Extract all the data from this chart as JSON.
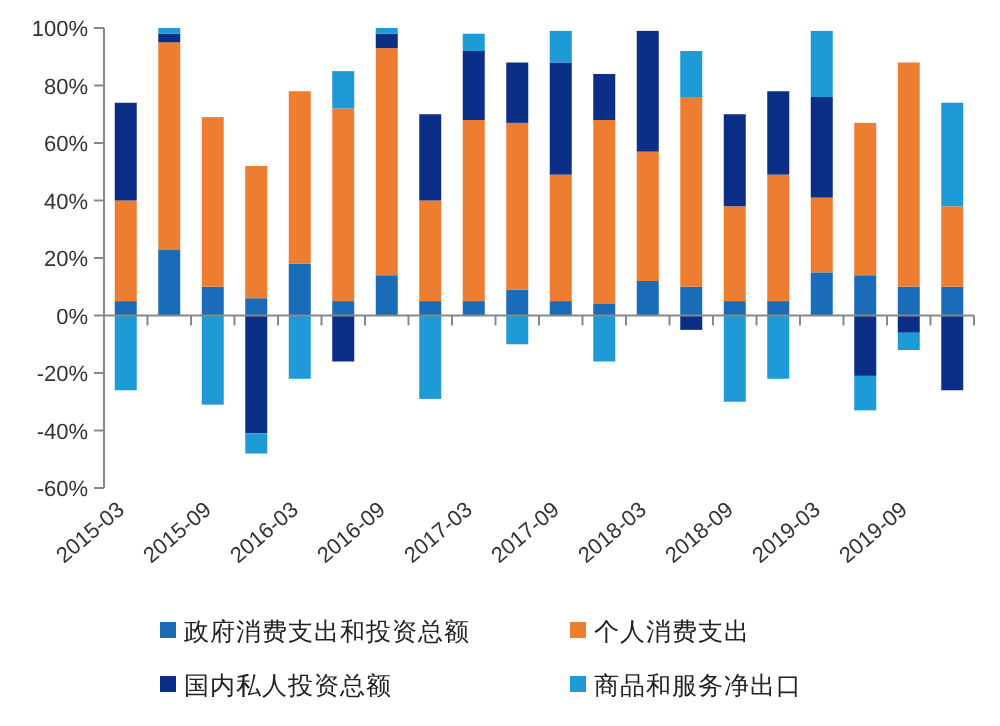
{
  "chart_data": {
    "type": "bar",
    "stacked": true,
    "categories": [
      "2015-03",
      null,
      "2015-09",
      null,
      "2016-03",
      null,
      "2016-09",
      null,
      "2017-03",
      null,
      "2017-09",
      null,
      "2018-03",
      null,
      "2018-09",
      null,
      "2019-03",
      null,
      "2019-09",
      null
    ],
    "series": [
      {
        "name": "政府消费支出和投资总额",
        "color": "#1a6bb8",
        "values": [
          5,
          23,
          10,
          6,
          18,
          5,
          14,
          5,
          5,
          9,
          5,
          4,
          12,
          10,
          5,
          5,
          15,
          14,
          10,
          10
        ]
      },
      {
        "name": "个人消费支出",
        "color": "#ed7d31",
        "values": [
          35,
          72,
          59,
          46,
          60,
          67,
          79,
          35,
          63,
          58,
          44,
          64,
          45,
          66,
          33,
          44,
          26,
          53,
          78,
          28
        ]
      },
      {
        "name": "国内私人投资总额",
        "color": "#0b2f86",
        "values": [
          34,
          3,
          null,
          -41,
          null,
          -16,
          5,
          30,
          24,
          21,
          39,
          16,
          42,
          -5,
          32,
          29,
          35,
          -21,
          -6,
          -26
        ]
      },
      {
        "name": "商品和服务净出口",
        "color": "#1e9ad6",
        "values": [
          -26,
          2,
          -31,
          -7,
          -22,
          13,
          2,
          -29,
          6,
          -10,
          11,
          -16,
          null,
          16,
          -30,
          -22,
          23,
          -12,
          -6,
          36
        ]
      }
    ],
    "ylim": [
      -60,
      100
    ],
    "yticks": [
      {
        "value": -60,
        "label": "-60%"
      },
      {
        "value": -40,
        "label": "-40%"
      },
      {
        "value": -20,
        "label": "-20%"
      },
      {
        "value": 0,
        "label": "0%"
      },
      {
        "value": 20,
        "label": "20%"
      },
      {
        "value": 40,
        "label": "40%"
      },
      {
        "value": 60,
        "label": "60%"
      },
      {
        "value": 80,
        "label": "80%"
      },
      {
        "value": 100,
        "label": "100%"
      }
    ],
    "legend": "bottom"
  }
}
